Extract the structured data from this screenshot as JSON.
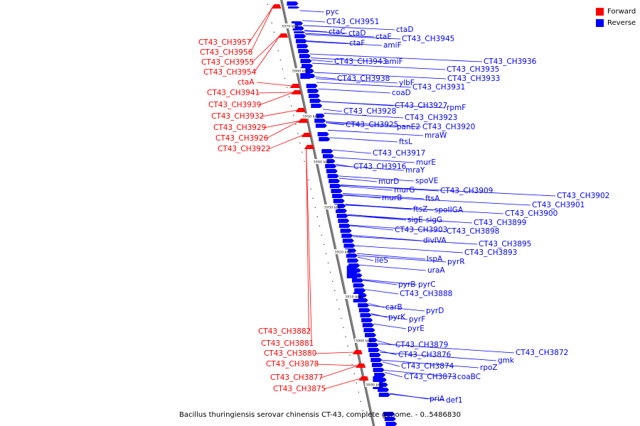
{
  "title": "Bacillus thuringiensis serovar chinensis CT-43, complete genome. - 0..5486830",
  "legend": [
    {
      "label": "Forward",
      "color": "#ff0000"
    },
    {
      "label": "Reverse",
      "color": "#0000ff"
    }
  ],
  "colors": {
    "forward": "#ff0000",
    "reverse": "#0000ff",
    "axis": "#808080"
  },
  "ticks": [
    "3970 kbp",
    "3960 kbp",
    "3950 kbp",
    "3940 kbp",
    "3930 kbp",
    "3920 kbp",
    "3910 kbp",
    "3900 kbp",
    "3890 kbp"
  ],
  "forward_labels": [
    "CT43_CH3957",
    "CT43_CH3956",
    "CT43_CH3955",
    "CT43_CH3954",
    "ctaA",
    "CT43_CH3941",
    "CT43_CH3939",
    "CT43_CH3932",
    "CT43_CH3929",
    "CT43_CH3926",
    "CT43_CH3922",
    "CT43_CH3882",
    "CT43_CH3881",
    "CT43_CH3880",
    "CT43_CH3878",
    "CT43_CH3877",
    "CT43_CH3875"
  ],
  "reverse_labels": [
    "pyc",
    "CT43_CH3951",
    "ctaC",
    "ctaD",
    "ctaD",
    "ctaE",
    "CT43_CH3945",
    "ctaF",
    "amiF",
    "CT43_CH3936",
    "CT43_CH3943",
    "amiF",
    "CT43_CH3935",
    "CT43_CH3938",
    "CT43_CH3933",
    "ylbF",
    "CT43_CH3931",
    "coaD",
    "CT43_CH3927",
    "rpmF",
    "CT43_CH3928",
    "CT43_CH3923",
    "CT43_CH3925",
    "panE2",
    "CT43_CH3920",
    "mraW",
    "ftsL",
    "CT43_CH3917",
    "murE",
    "CT43_CH3916",
    "mraY",
    "murD",
    "spoVE",
    "murG",
    "CT43_CH3909",
    "murB",
    "ftsA",
    "CT43_CH3902",
    "CT43_CH3901",
    "ftsZ",
    "spoIIGA",
    "CT43_CH3900",
    "sigE",
    "sigG",
    "CT43_CH3899",
    "CT43_CH3903",
    "CT43_CH3898",
    "divIVA",
    "CT43_CH3895",
    "CT43_CH3893",
    "ileS",
    "lspA",
    "pyrR",
    "uraA",
    "pyrB",
    "pyrC",
    "CT43_CH3888",
    "carB",
    "pyrD",
    "pyrK",
    "pyrF",
    "pyrE",
    "CT43_CH3879",
    "CT43_CH3876",
    "CT43_CH3872",
    "gmk",
    "CT43_CH3874",
    "rpoZ",
    "CT43_CH3873",
    "coaBC",
    "priA",
    "def1"
  ]
}
